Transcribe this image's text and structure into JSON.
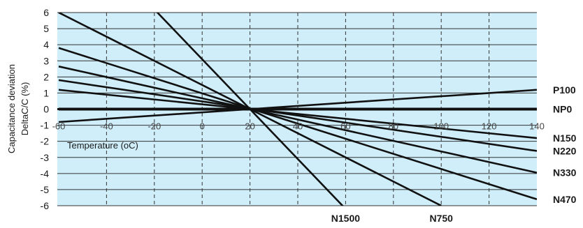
{
  "chart_data": {
    "type": "line",
    "title": "",
    "xlabel": "Temperature (oC)",
    "ylabel_line1": "Capacitance deviation",
    "ylabel_line2": "DeltaC/C (%)",
    "xlim": [
      -60,
      140
    ],
    "ylim": [
      -6,
      6
    ],
    "x_ticks": [
      -60,
      -40,
      -20,
      0,
      20,
      40,
      60,
      80,
      100,
      120,
      140
    ],
    "y_ticks": [
      6,
      5,
      4,
      3,
      2,
      1,
      0,
      -1,
      -2,
      -3,
      -4,
      -5,
      -6
    ],
    "grid": true,
    "colors": {
      "plot_bg": "#cfeefa",
      "line": "#111111",
      "grid": "#333333"
    },
    "series": [
      {
        "name": "P100",
        "x": [
          -60,
          140
        ],
        "y": [
          -0.8,
          1.2
        ]
      },
      {
        "name": "NP0",
        "x": [
          -60,
          140
        ],
        "y": [
          0,
          0
        ]
      },
      {
        "name": "N150",
        "x": [
          -60,
          140
        ],
        "y": [
          1.2,
          -1.8
        ]
      },
      {
        "name": "N220",
        "x": [
          -60,
          140
        ],
        "y": [
          1.8,
          -2.6
        ]
      },
      {
        "name": "N330",
        "x": [
          -60,
          140
        ],
        "y": [
          2.65,
          -3.95
        ]
      },
      {
        "name": "N470",
        "x": [
          -60,
          140
        ],
        "y": [
          3.8,
          -5.6
        ]
      },
      {
        "name": "N750",
        "x": [
          -60,
          100
        ],
        "y": [
          6.0,
          -6.0
        ]
      },
      {
        "name": "N1500",
        "x": [
          -20,
          60
        ],
        "y": [
          6.2,
          -6.2
        ]
      }
    ]
  }
}
